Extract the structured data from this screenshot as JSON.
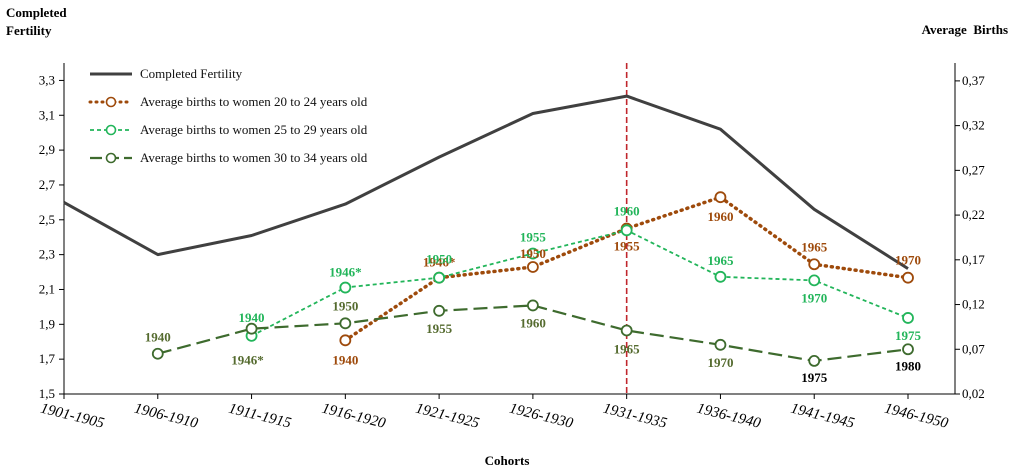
{
  "chart_data": {
    "type": "line",
    "xlabel": "Cohorts",
    "ylabel_left": "Completed Fertility",
    "ylabel_right": "Average  Births",
    "categories": [
      "1901-1905",
      "1906-1910",
      "1911-1915",
      "1916-1920",
      "1921-1925",
      "1926-1930",
      "1931-1935",
      "1936-1940",
      "1941-1945",
      "1946-1950"
    ],
    "ylim_left": [
      1.5,
      3.4
    ],
    "yticks_left": [
      "1,5",
      "1,7",
      "1,9",
      "2,1",
      "2,3",
      "2,5",
      "2,7",
      "2,9",
      "3,1",
      "3,3"
    ],
    "ylim_right": [
      0.02,
      0.39
    ],
    "yticks_right": [
      "0,02",
      "0,07",
      "0,12",
      "0,17",
      "0,22",
      "0,27",
      "0,32",
      "0,37"
    ],
    "reference_line_category": "1931-1935",
    "series": [
      {
        "name": "Completed Fertility",
        "axis": "left",
        "color": "#404040",
        "style": "solid",
        "values": [
          2.6,
          2.3,
          2.41,
          2.59,
          2.86,
          3.11,
          3.21,
          3.02,
          2.56,
          2.22
        ],
        "labels": []
      },
      {
        "name": "Average births to women 20 to 24 years old",
        "axis": "right",
        "color": "#9e4a0b",
        "style": "dotted",
        "values": [
          null,
          null,
          null,
          0.08,
          0.15,
          0.162,
          0.205,
          0.24,
          0.165,
          0.15
        ],
        "labels": [
          null,
          null,
          null,
          "1940",
          "1946*",
          "1950",
          "1955",
          "1960",
          "1965",
          "1970"
        ]
      },
      {
        "name": "Average births to women 25 to 29 years old",
        "axis": "right",
        "color": "#22b55a",
        "style": "dashed",
        "values": [
          null,
          null,
          0.085,
          0.139,
          0.15,
          0.177,
          0.203,
          0.151,
          0.147,
          0.105
        ],
        "labels": [
          null,
          null,
          "1940",
          "1946*",
          "1950",
          "1955",
          "1960",
          "1965",
          "1970",
          "1975"
        ]
      },
      {
        "name": "Average births to women 30  to 34 years old",
        "axis": "right",
        "color": "#3e6b2e",
        "style": "longdash",
        "values": [
          null,
          0.065,
          0.093,
          0.099,
          0.113,
          0.119,
          0.091,
          0.075,
          0.057,
          0.07
        ],
        "labels": [
          null,
          "1940",
          "1946*",
          "1950",
          "1955",
          "1960",
          "1965",
          "1970",
          "1975",
          "1980"
        ]
      }
    ]
  },
  "icons": {
    "legend_markers": [
      "solid-line-icon",
      "dotted-circle-line-icon",
      "dashed-circle-line-icon",
      "longdash-circle-line-icon"
    ]
  }
}
